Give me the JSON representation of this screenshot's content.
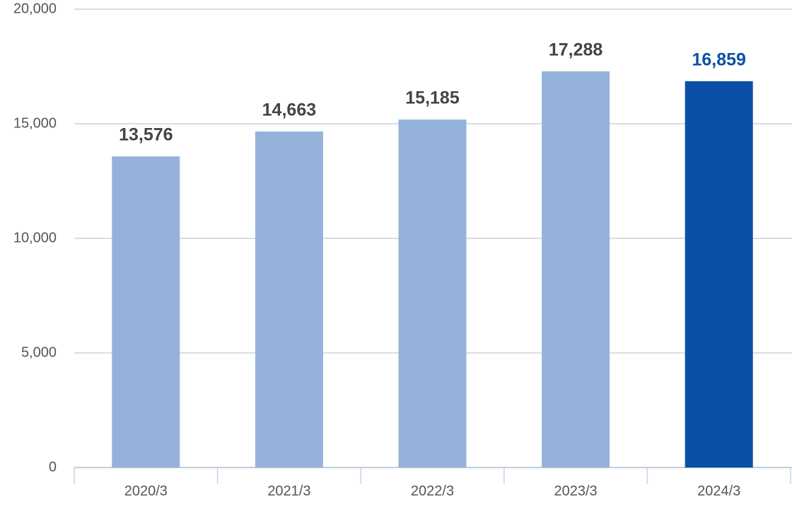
{
  "chart_data": {
    "type": "bar",
    "categories": [
      "2020/3",
      "2021/3",
      "2022/3",
      "2023/3",
      "2024/3"
    ],
    "values": [
      13576,
      14663,
      15185,
      17288,
      16859
    ],
    "value_labels": [
      "13,576",
      "14,663",
      "15,185",
      "17,288",
      "16,859"
    ],
    "colors": [
      "#95b2da",
      "#95b2da",
      "#95b2da",
      "#95b2da",
      "#0a50a8"
    ],
    "label_colors": [
      "#444444",
      "#444444",
      "#444444",
      "#444444",
      "#0a50a8"
    ],
    "ylim": [
      0,
      20000
    ],
    "yticks": [
      0,
      {
        "value": 5000,
        "label": "5,000"
      },
      {
        "value": 10000,
        "label": "10,000"
      },
      {
        "value": 15000,
        "label": "15,000"
      },
      {
        "value": 20000,
        "label": "20,000"
      }
    ],
    "grid": true
  }
}
